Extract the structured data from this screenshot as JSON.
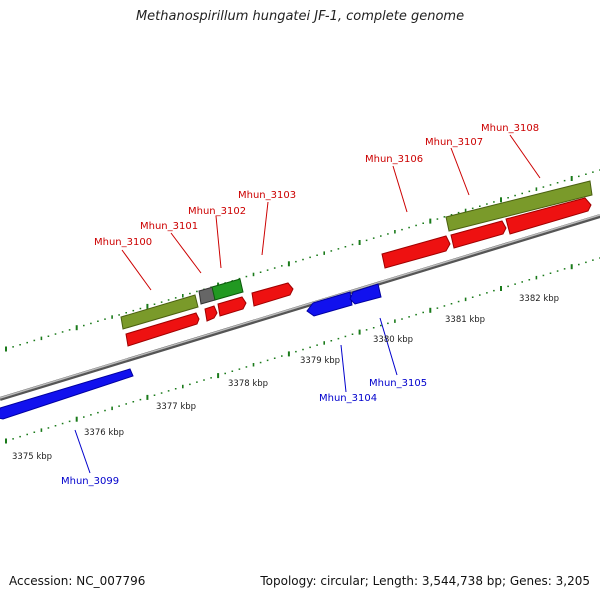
{
  "title": "Methanospirillum hungatei JF-1, complete genome",
  "accession": "Accession: NC_007796",
  "topology": "Topology: circular; Length: 3,544,738 bp; Genes: 3,205",
  "colors": {
    "forward_label": "#cc0000",
    "reverse_label": "#0000cc",
    "backbone": "#888888",
    "ruler": "#1a7a1a",
    "cds": "#ee1111",
    "gene": "#7a9a2a",
    "reverse_cds": "#1111ee",
    "other": "#666666",
    "green": "#229922"
  },
  "ruler_labels": [
    {
      "text": "3375 kbp"
    },
    {
      "text": "3376 kbp"
    },
    {
      "text": "3377 kbp"
    },
    {
      "text": "3378 kbp"
    },
    {
      "text": "3379 kbp"
    },
    {
      "text": "3380 kbp"
    },
    {
      "text": "3381 kbp"
    },
    {
      "text": "3382 kbp"
    }
  ],
  "gene_labels": [
    {
      "text": "Mhun_3099",
      "strand": "reverse"
    },
    {
      "text": "Mhun_3100",
      "strand": "forward"
    },
    {
      "text": "Mhun_3101",
      "strand": "forward"
    },
    {
      "text": "Mhun_3102",
      "strand": "forward"
    },
    {
      "text": "Mhun_3103",
      "strand": "forward"
    },
    {
      "text": "Mhun_3104",
      "strand": "reverse"
    },
    {
      "text": "Mhun_3105",
      "strand": "reverse"
    },
    {
      "text": "Mhun_3106",
      "strand": "forward"
    },
    {
      "text": "Mhun_3107",
      "strand": "forward"
    },
    {
      "text": "Mhun_3108",
      "strand": "forward"
    }
  ]
}
